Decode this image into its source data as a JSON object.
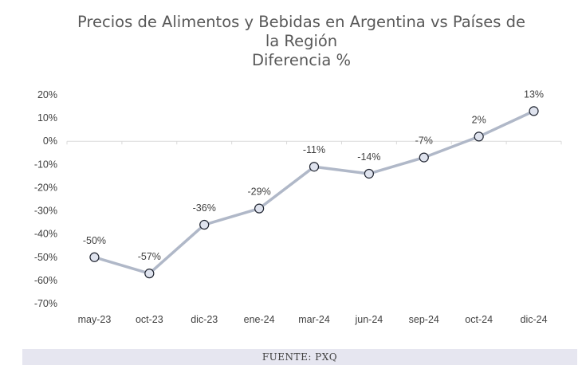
{
  "chart_data": {
    "type": "line",
    "title_lines": [
      "Precios de Alimentos y Bebidas en Argentina vs Países de",
      "la Región",
      "Diferencia %"
    ],
    "categories": [
      "may-23",
      "oct-23",
      "dic-23",
      "ene-24",
      "mar-24",
      "jun-24",
      "sep-24",
      "oct-24",
      "dic-24"
    ],
    "values": [
      -50,
      -57,
      -36,
      -29,
      -11,
      -14,
      -7,
      2,
      13
    ],
    "data_labels": [
      "-50%",
      "-57%",
      "-36%",
      "-29%",
      "-11%",
      "-14%",
      "-7%",
      "2%",
      "13%"
    ],
    "y_ticks": [
      20,
      10,
      0,
      -10,
      -20,
      -30,
      -40,
      -50,
      -60,
      -70
    ],
    "y_tick_labels": [
      "20%",
      "10%",
      "0%",
      "-10%",
      "-20%",
      "-30%",
      "-40%",
      "-50%",
      "-60%",
      "-70%"
    ],
    "ylim": [
      -70,
      20
    ],
    "xlabel": "",
    "ylabel": "",
    "grid": false,
    "legend": "none",
    "colors": {
      "line": "#b0b8c8",
      "marker_fill": "#dfe3ee",
      "marker_stroke": "#1f2430",
      "text": "#404040",
      "axis": "#d9d9d9"
    }
  },
  "footer": {
    "source": "FUENTE: PXQ"
  }
}
